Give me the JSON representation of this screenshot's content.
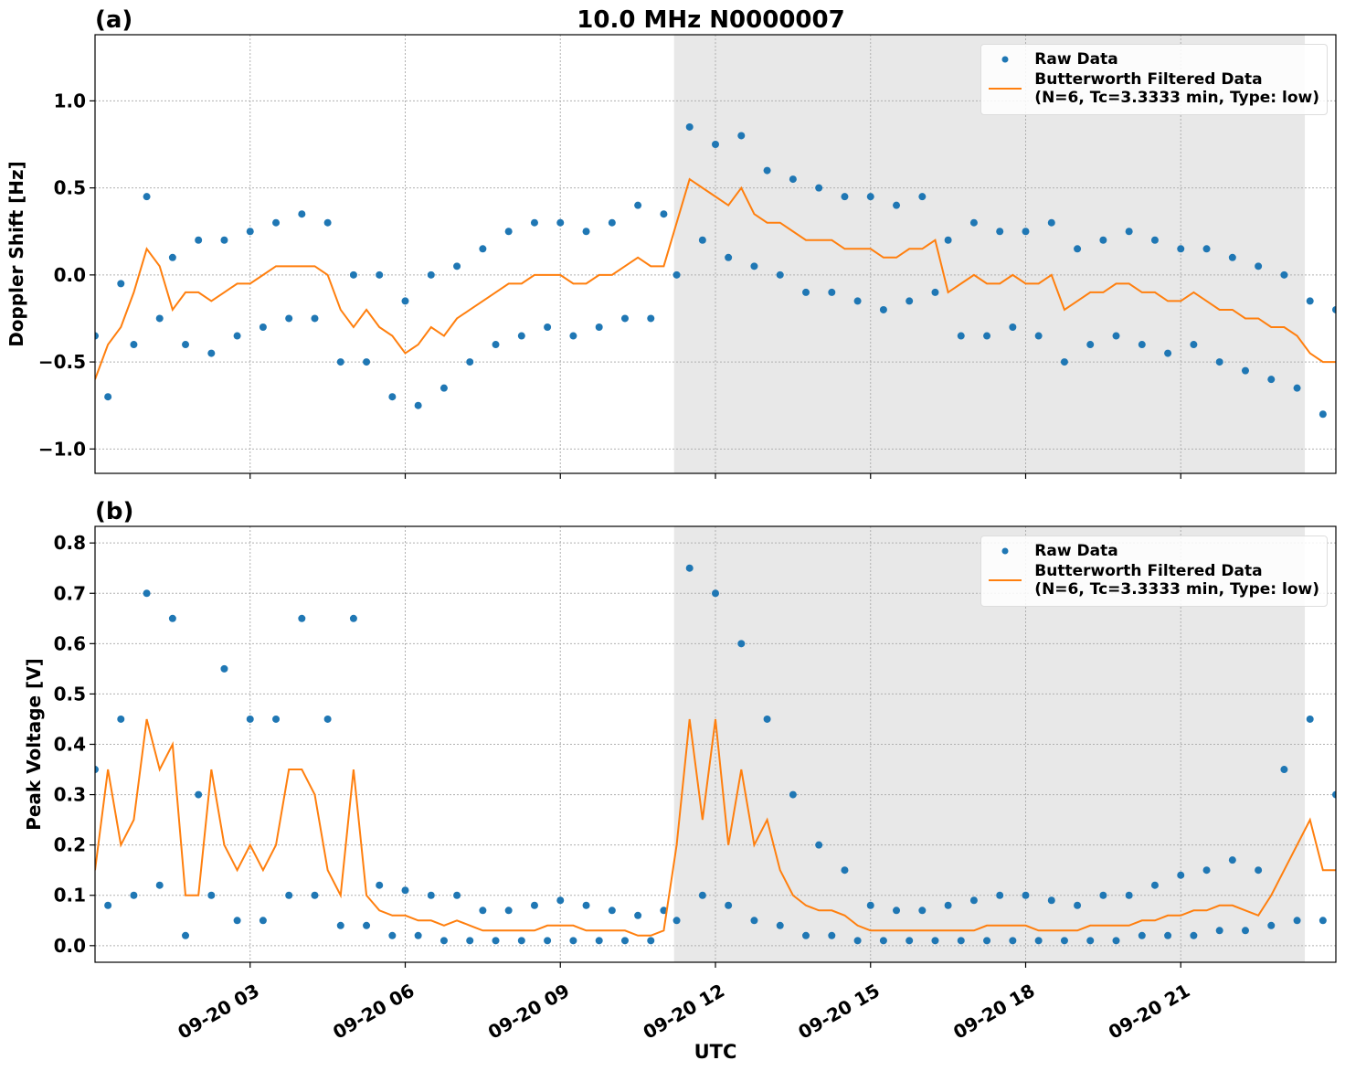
{
  "chart_data": [
    {
      "type": "scatter",
      "title": "10.0 MHz N0000007",
      "panel_label": "(a)",
      "ylabel": "Doppler Shift [Hz]",
      "x": [
        0,
        0.25,
        0.5,
        0.75,
        1,
        1.25,
        1.5,
        1.75,
        2,
        2.25,
        2.5,
        2.75,
        3,
        3.25,
        3.5,
        3.75,
        4,
        4.25,
        4.5,
        4.75,
        5,
        5.25,
        5.5,
        5.75,
        6,
        6.25,
        6.5,
        6.75,
        7,
        7.25,
        7.5,
        7.75,
        8,
        8.25,
        8.5,
        8.75,
        9,
        9.25,
        9.5,
        9.75,
        10,
        10.25,
        10.5,
        10.75,
        11,
        11.25,
        11.5,
        11.75,
        12,
        12.25,
        12.5,
        12.75,
        13,
        13.25,
        13.5,
        13.75,
        14,
        14.25,
        14.5,
        14.75,
        15,
        15.25,
        15.5,
        15.75,
        16,
        16.25,
        16.5,
        16.75,
        17,
        17.25,
        17.5,
        17.75,
        18,
        18.25,
        18.5,
        18.75,
        19,
        19.25,
        19.5,
        19.75,
        20,
        20.25,
        20.5,
        20.75,
        21,
        21.25,
        21.5,
        21.75,
        22,
        22.25,
        22.5,
        22.75,
        23,
        23.25,
        23.5,
        23.75,
        24
      ],
      "series": [
        {
          "name": "Raw Data",
          "style": "markers",
          "color": "#1f77b4",
          "values": [
            -0.35,
            -0.7,
            -0.05,
            -0.4,
            0.45,
            -0.25,
            0.1,
            -0.4,
            0.2,
            -0.45,
            0.2,
            -0.35,
            0.25,
            -0.3,
            0.3,
            -0.25,
            0.35,
            -0.25,
            0.3,
            -0.5,
            0.0,
            -0.5,
            0.0,
            -0.7,
            -0.15,
            -0.75,
            0.0,
            -0.65,
            0.05,
            -0.5,
            0.15,
            -0.4,
            0.25,
            -0.35,
            0.3,
            -0.3,
            0.3,
            -0.35,
            0.25,
            -0.3,
            0.3,
            -0.25,
            0.4,
            -0.25,
            0.35,
            0.0,
            0.85,
            0.2,
            0.75,
            0.1,
            0.8,
            0.05,
            0.6,
            0.0,
            0.55,
            -0.1,
            0.5,
            -0.1,
            0.45,
            -0.15,
            0.45,
            -0.2,
            0.4,
            -0.15,
            0.45,
            -0.1,
            0.2,
            -0.35,
            0.3,
            -0.35,
            0.25,
            -0.3,
            0.25,
            -0.35,
            0.3,
            -0.5,
            0.15,
            -0.4,
            0.2,
            -0.35,
            0.25,
            -0.4,
            0.2,
            -0.45,
            0.15,
            -0.4,
            0.15,
            -0.5,
            0.1,
            -0.55,
            0.05,
            -0.6,
            0.0,
            -0.65,
            -0.15,
            -0.8,
            -0.2
          ]
        },
        {
          "name": "Butterworth Filtered Data\n(N=6, Tc=3.3333 min, Type: low)",
          "style": "line",
          "color": "#ff7f0e",
          "values": [
            -0.6,
            -0.4,
            -0.3,
            -0.1,
            0.15,
            0.05,
            -0.2,
            -0.1,
            -0.1,
            -0.15,
            -0.1,
            -0.05,
            -0.05,
            0.0,
            0.05,
            0.05,
            0.05,
            0.05,
            0.0,
            -0.2,
            -0.3,
            -0.2,
            -0.3,
            -0.35,
            -0.45,
            -0.4,
            -0.3,
            -0.35,
            -0.25,
            -0.2,
            -0.15,
            -0.1,
            -0.05,
            -0.05,
            0.0,
            0.0,
            0.0,
            -0.05,
            -0.05,
            0.0,
            0.0,
            0.05,
            0.1,
            0.05,
            0.05,
            0.3,
            0.55,
            0.5,
            0.45,
            0.4,
            0.5,
            0.35,
            0.3,
            0.3,
            0.25,
            0.2,
            0.2,
            0.2,
            0.15,
            0.15,
            0.15,
            0.1,
            0.1,
            0.15,
            0.15,
            0.2,
            -0.1,
            -0.05,
            0.0,
            -0.05,
            -0.05,
            0.0,
            -0.05,
            -0.05,
            0.0,
            -0.2,
            -0.15,
            -0.1,
            -0.1,
            -0.05,
            -0.05,
            -0.1,
            -0.1,
            -0.15,
            -0.15,
            -0.1,
            -0.15,
            -0.2,
            -0.2,
            -0.25,
            -0.25,
            -0.3,
            -0.3,
            -0.35,
            -0.45,
            -0.5,
            -0.5
          ]
        }
      ],
      "xlim": [
        0,
        24
      ],
      "ylim": [
        -1.14,
        1.38
      ],
      "yticks": [
        {
          "value": -1,
          "label": "−1.0"
        },
        {
          "value": -0.5,
          "label": "−0.5"
        },
        {
          "value": 0,
          "label": "0.0"
        },
        {
          "value": 0.5,
          "label": "0.5"
        },
        {
          "value": 1,
          "label": "1.0"
        }
      ],
      "shade": {
        "x": [
          11.2,
          23.4
        ],
        "color": "#e8e8e8"
      },
      "grid": true,
      "legend": "upper right"
    },
    {
      "type": "scatter",
      "panel_label": "(b)",
      "ylabel": "Peak Voltage [V]",
      "xlabel": "UTC",
      "x": [
        0,
        0.25,
        0.5,
        0.75,
        1,
        1.25,
        1.5,
        1.75,
        2,
        2.25,
        2.5,
        2.75,
        3,
        3.25,
        3.5,
        3.75,
        4,
        4.25,
        4.5,
        4.75,
        5,
        5.25,
        5.5,
        5.75,
        6,
        6.25,
        6.5,
        6.75,
        7,
        7.25,
        7.5,
        7.75,
        8,
        8.25,
        8.5,
        8.75,
        9,
        9.25,
        9.5,
        9.75,
        10,
        10.25,
        10.5,
        10.75,
        11,
        11.25,
        11.5,
        11.75,
        12,
        12.25,
        12.5,
        12.75,
        13,
        13.25,
        13.5,
        13.75,
        14,
        14.25,
        14.5,
        14.75,
        15,
        15.25,
        15.5,
        15.75,
        16,
        16.25,
        16.5,
        16.75,
        17,
        17.25,
        17.5,
        17.75,
        18,
        18.25,
        18.5,
        18.75,
        19,
        19.25,
        19.5,
        19.75,
        20,
        20.25,
        20.5,
        20.75,
        21,
        21.25,
        21.5,
        21.75,
        22,
        22.25,
        22.5,
        22.75,
        23,
        23.25,
        23.5,
        23.75,
        24
      ],
      "series": [
        {
          "name": "Raw Data",
          "style": "markers",
          "color": "#1f77b4",
          "values": [
            0.35,
            0.08,
            0.45,
            0.1,
            0.7,
            0.12,
            0.65,
            0.02,
            0.3,
            0.1,
            0.55,
            0.05,
            0.45,
            0.05,
            0.45,
            0.1,
            0.65,
            0.1,
            0.45,
            0.04,
            0.65,
            0.04,
            0.12,
            0.02,
            0.11,
            0.02,
            0.1,
            0.01,
            0.1,
            0.01,
            0.07,
            0.01,
            0.07,
            0.01,
            0.08,
            0.01,
            0.09,
            0.01,
            0.08,
            0.01,
            0.07,
            0.01,
            0.06,
            0.01,
            0.07,
            0.05,
            0.75,
            0.1,
            0.7,
            0.08,
            0.6,
            0.05,
            0.45,
            0.04,
            0.3,
            0.02,
            0.2,
            0.02,
            0.15,
            0.01,
            0.08,
            0.01,
            0.07,
            0.01,
            0.07,
            0.01,
            0.08,
            0.01,
            0.09,
            0.01,
            0.1,
            0.01,
            0.1,
            0.01,
            0.09,
            0.01,
            0.08,
            0.01,
            0.1,
            0.01,
            0.1,
            0.02,
            0.12,
            0.02,
            0.14,
            0.02,
            0.15,
            0.03,
            0.17,
            0.03,
            0.15,
            0.04,
            0.35,
            0.05,
            0.45,
            0.05,
            0.3
          ]
        },
        {
          "name": "Butterworth Filtered Data\n(N=6, Tc=3.3333 min, Type: low)",
          "style": "line",
          "color": "#ff7f0e",
          "values": [
            0.15,
            0.35,
            0.2,
            0.25,
            0.45,
            0.35,
            0.4,
            0.1,
            0.1,
            0.35,
            0.2,
            0.15,
            0.2,
            0.15,
            0.2,
            0.35,
            0.35,
            0.3,
            0.15,
            0.1,
            0.35,
            0.1,
            0.07,
            0.06,
            0.06,
            0.05,
            0.05,
            0.04,
            0.05,
            0.04,
            0.03,
            0.03,
            0.03,
            0.03,
            0.03,
            0.04,
            0.04,
            0.04,
            0.03,
            0.03,
            0.03,
            0.03,
            0.02,
            0.02,
            0.03,
            0.2,
            0.45,
            0.25,
            0.45,
            0.2,
            0.35,
            0.2,
            0.25,
            0.15,
            0.1,
            0.08,
            0.07,
            0.07,
            0.06,
            0.04,
            0.03,
            0.03,
            0.03,
            0.03,
            0.03,
            0.03,
            0.03,
            0.03,
            0.03,
            0.04,
            0.04,
            0.04,
            0.04,
            0.03,
            0.03,
            0.03,
            0.03,
            0.04,
            0.04,
            0.04,
            0.04,
            0.05,
            0.05,
            0.06,
            0.06,
            0.07,
            0.07,
            0.08,
            0.08,
            0.07,
            0.06,
            0.1,
            0.15,
            0.2,
            0.25,
            0.15,
            0.15
          ]
        }
      ],
      "xlim": [
        0,
        24
      ],
      "ylim": [
        -0.033,
        0.833
      ],
      "xticks": [
        {
          "value": 3,
          "label": "09-20 03"
        },
        {
          "value": 6,
          "label": "09-20 06"
        },
        {
          "value": 9,
          "label": "09-20 09"
        },
        {
          "value": 12,
          "label": "09-20 12"
        },
        {
          "value": 15,
          "label": "09-20 15"
        },
        {
          "value": 18,
          "label": "09-20 18"
        },
        {
          "value": 21,
          "label": "09-20 21"
        }
      ],
      "yticks": [
        {
          "value": 0,
          "label": "0.0"
        },
        0.1,
        0.2,
        0.3,
        0.4,
        0.5,
        0.6,
        0.7,
        0.8
      ],
      "shade": {
        "x": [
          11.2,
          23.4
        ],
        "color": "#e8e8e8"
      },
      "grid": true,
      "legend": "upper right"
    }
  ]
}
